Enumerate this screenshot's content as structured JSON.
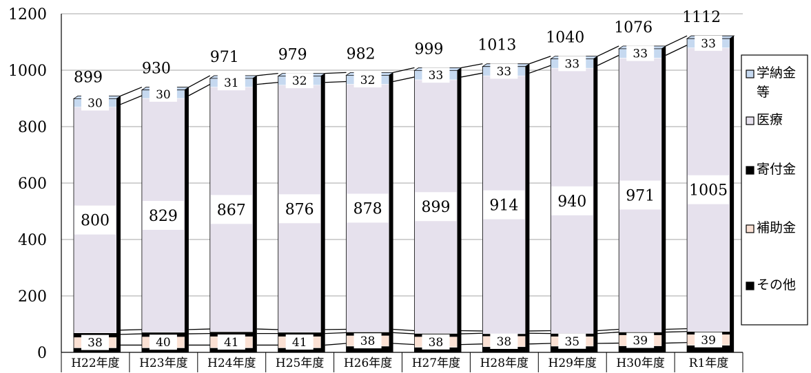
{
  "chart_data": {
    "type": "bar",
    "stacked": true,
    "categories": [
      "H22年度",
      "H23年度",
      "H24年度",
      "H25年度",
      "H26年度",
      "H27年度",
      "H28年度",
      "H29年度",
      "H30年度",
      "R1年度"
    ],
    "series": [
      {
        "name": "その他",
        "values": [
          16,
          16,
          16,
          16,
          22,
          18,
          20,
          22,
          23,
          25
        ],
        "color": "#000000"
      },
      {
        "name": "補助金",
        "values": [
          38,
          40,
          41,
          41,
          38,
          38,
          38,
          35,
          39,
          39
        ],
        "color": "#fbe1d4",
        "labeled": true
      },
      {
        "name": "寄付金",
        "values": [
          15,
          15,
          16,
          14,
          12,
          11,
          8,
          10,
          10,
          10
        ],
        "color": "#000000"
      },
      {
        "name": "医療",
        "values": [
          800,
          829,
          867,
          876,
          878,
          899,
          914,
          940,
          971,
          1005
        ],
        "color": "#e6e1ed",
        "labeled": true
      },
      {
        "name": "学納金等",
        "values": [
          30,
          30,
          31,
          32,
          32,
          33,
          33,
          33,
          33,
          33
        ],
        "color": "#c6d9f0",
        "labeled": true
      }
    ],
    "totals": [
      899,
      930,
      971,
      979,
      982,
      999,
      1013,
      1040,
      1076,
      1112
    ],
    "legend_order": [
      "学納金等",
      "医療",
      "寄付金",
      "補助金",
      "その他"
    ],
    "ylim": [
      0,
      1200
    ],
    "yticks": [
      "0",
      "200",
      "400",
      "600",
      "800",
      "1000",
      "1200"
    ],
    "grid": true,
    "legend_position": "right",
    "title": "",
    "xlabel": "",
    "ylabel": ""
  }
}
